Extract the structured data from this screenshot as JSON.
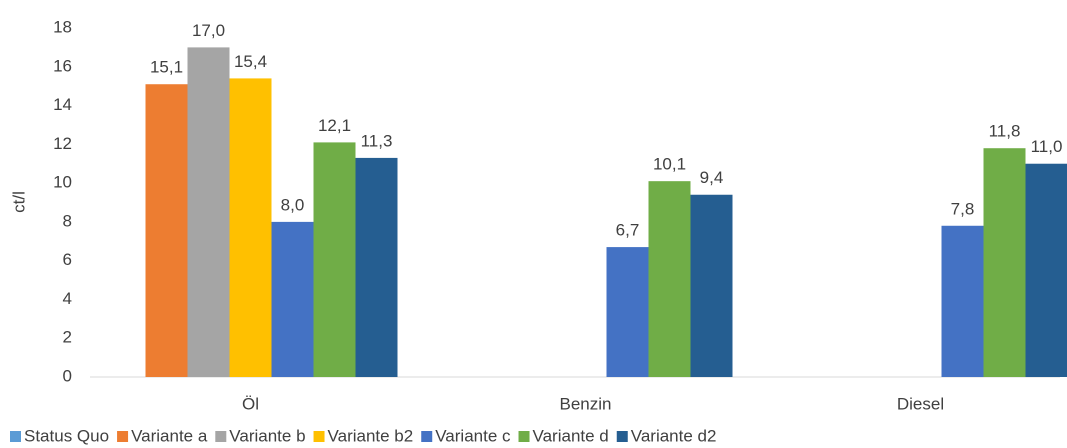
{
  "chart_data": {
    "type": "bar",
    "ylabel": "ct/l",
    "categories": [
      "Öl",
      "Benzin",
      "Diesel"
    ],
    "series": [
      {
        "name": "Status Quo",
        "color": "#5b9bd5",
        "values": [
          null,
          null,
          null
        ]
      },
      {
        "name": "Variante a",
        "color": "#ed7d31",
        "values": [
          15.1,
          null,
          null
        ],
        "value_labels": [
          "15,1",
          null,
          null
        ]
      },
      {
        "name": "Variante b",
        "color": "#a5a5a5",
        "values": [
          17.0,
          null,
          null
        ],
        "value_labels": [
          "17,0",
          null,
          null
        ]
      },
      {
        "name": "Variante b2",
        "color": "#ffc000",
        "values": [
          15.4,
          null,
          null
        ],
        "value_labels": [
          "15,4",
          null,
          null
        ]
      },
      {
        "name": "Variante c",
        "color": "#4472c4",
        "values": [
          8.0,
          6.7,
          7.8
        ],
        "value_labels": [
          "8,0",
          "6,7",
          "7,8"
        ]
      },
      {
        "name": "Variante d",
        "color": "#70ad47",
        "values": [
          12.1,
          10.1,
          11.8
        ],
        "value_labels": [
          "12,1",
          "10,1",
          "11,8"
        ]
      },
      {
        "name": "Variante d2",
        "color": "#255e91",
        "values": [
          11.3,
          9.4,
          11.0
        ],
        "value_labels": [
          "11,3",
          "9,4",
          "11,0"
        ]
      }
    ],
    "ylim": [
      0,
      18
    ],
    "yticks": [
      0,
      2,
      4,
      6,
      8,
      10,
      12,
      14,
      16,
      18
    ],
    "grid": false,
    "legend": "bottom"
  }
}
